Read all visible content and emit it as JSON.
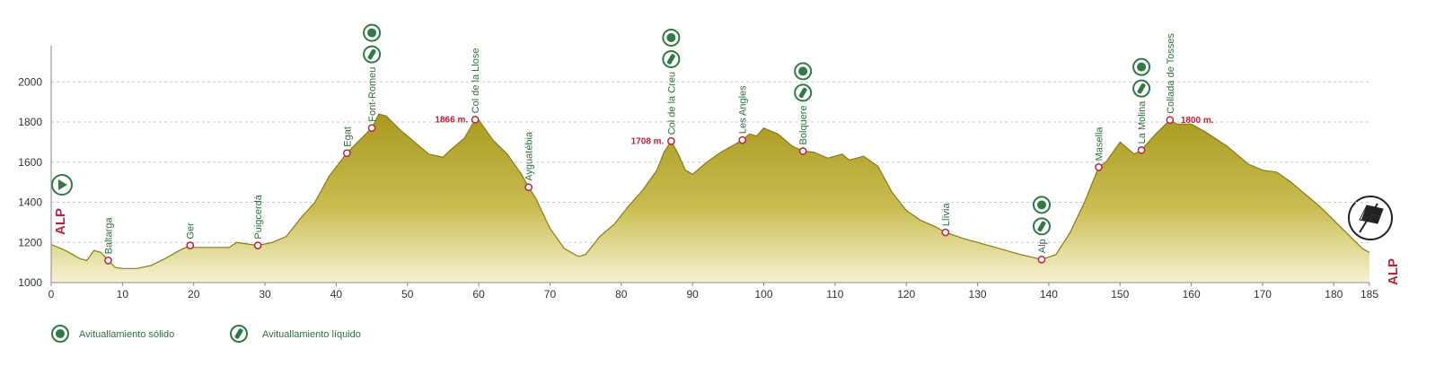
{
  "chart_data": {
    "type": "area",
    "color": "#a99b20",
    "line_color": "#8a7c14",
    "marker_color": "#c0213a",
    "icon_color": "#2f7a45",
    "x": [
      0,
      2,
      4,
      5,
      6,
      7,
      8,
      9,
      10,
      12,
      14,
      16,
      18,
      19.5,
      20,
      25,
      26,
      29,
      31,
      33,
      35,
      37,
      39,
      41.5,
      43,
      45,
      46,
      47,
      49,
      51,
      53,
      55,
      56,
      58,
      59.5,
      60,
      62,
      64,
      66,
      67,
      68,
      70,
      72,
      74,
      75,
      77,
      79,
      81,
      83,
      85,
      86,
      87,
      88,
      89,
      90,
      92,
      94,
      96,
      97,
      98,
      99,
      100,
      102,
      104,
      105.5,
      107,
      109,
      111,
      112,
      114,
      116,
      118,
      120,
      122,
      124,
      125.5,
      128,
      132,
      136,
      139,
      141,
      143,
      145,
      147,
      148,
      150,
      152,
      153,
      155,
      157,
      158,
      160,
      162,
      165,
      168,
      170,
      172,
      174,
      176,
      178,
      180,
      182,
      184,
      185
    ],
    "values": [
      1190,
      1160,
      1120,
      1110,
      1160,
      1150,
      1110,
      1075,
      1070,
      1070,
      1085,
      1120,
      1160,
      1185,
      1175,
      1175,
      1200,
      1185,
      1200,
      1230,
      1320,
      1400,
      1530,
      1645,
      1700,
      1770,
      1840,
      1830,
      1760,
      1700,
      1640,
      1625,
      1660,
      1720,
      1812,
      1810,
      1710,
      1640,
      1540,
      1475,
      1420,
      1270,
      1170,
      1130,
      1140,
      1230,
      1290,
      1380,
      1460,
      1560,
      1650,
      1705,
      1640,
      1560,
      1540,
      1600,
      1650,
      1690,
      1710,
      1740,
      1730,
      1770,
      1740,
      1680,
      1655,
      1650,
      1620,
      1640,
      1610,
      1630,
      1580,
      1450,
      1360,
      1310,
      1280,
      1250,
      1220,
      1180,
      1140,
      1115,
      1140,
      1250,
      1400,
      1575,
      1600,
      1700,
      1640,
      1660,
      1740,
      1810,
      1790,
      1790,
      1750,
      1680,
      1590,
      1560,
      1550,
      1500,
      1440,
      1380,
      1310,
      1240,
      1170,
      1150
    ],
    "xlim": [
      0,
      185
    ],
    "ylim": [
      1000,
      2180
    ],
    "xticks": [
      0,
      10,
      20,
      30,
      40,
      50,
      60,
      70,
      80,
      90,
      100,
      110,
      120,
      130,
      140,
      150,
      160,
      170,
      180,
      185
    ],
    "yticks": [
      1000,
      1200,
      1400,
      1600,
      1800,
      2000
    ],
    "grid": true,
    "start_label": "ALP",
    "end_label": "ALP",
    "waypoints": [
      {
        "name": "Baltarga",
        "x": 8,
        "y": 1110
      },
      {
        "name": "Ger",
        "x": 19.5,
        "y": 1185
      },
      {
        "name": "Puigcerdà",
        "x": 29,
        "y": 1185
      },
      {
        "name": "Egat",
        "x": 41.5,
        "y": 1645
      },
      {
        "name": "Font-Romeu",
        "x": 45,
        "y": 1770,
        "solid": true,
        "liquid": true
      },
      {
        "name": "Col de la Llose",
        "x": 59.5,
        "y": 1812,
        "altitude": "1866 m."
      },
      {
        "name": "Ayguatébia",
        "x": 67,
        "y": 1475
      },
      {
        "name": "Col de la Creu",
        "x": 87,
        "y": 1705,
        "altitude": "1708 m.",
        "solid": true,
        "liquid": true
      },
      {
        "name": "Les Angles",
        "x": 97,
        "y": 1710
      },
      {
        "name": "Bolquere",
        "x": 105.5,
        "y": 1655,
        "solid": true,
        "liquid": true
      },
      {
        "name": "Llívia",
        "x": 125.5,
        "y": 1250
      },
      {
        "name": "Alp",
        "x": 139,
        "y": 1115,
        "solid": true,
        "liquid": true
      },
      {
        "name": "Masella",
        "x": 147,
        "y": 1575
      },
      {
        "name": "La Molina",
        "x": 153,
        "y": 1660,
        "solid": true,
        "liquid": true
      },
      {
        "name": "Collada de Tosses",
        "x": 157,
        "y": 1810,
        "altitude": "1800 m.",
        "altitude_side": "right"
      }
    ],
    "legend": {
      "solid": "Avituallamiento sólido",
      "liquid": "Avituallamiento líquido"
    }
  }
}
